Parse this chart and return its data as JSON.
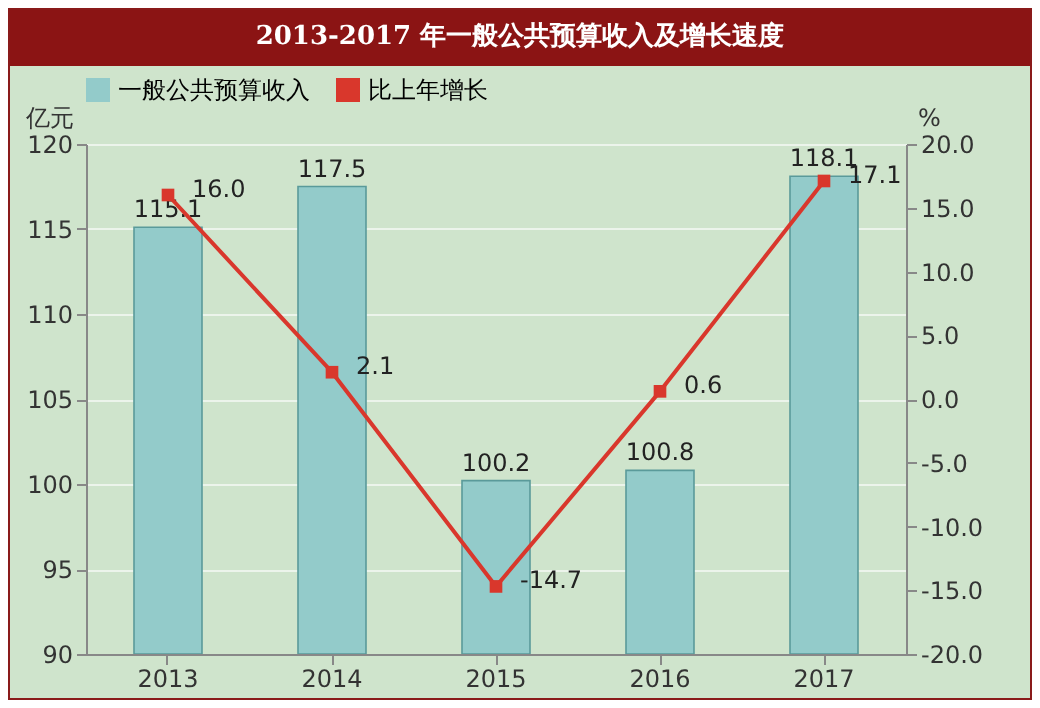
{
  "chart_data": {
    "type": "bar",
    "title": "2013-2017 年一般公共预算收入及增长速度",
    "ylabel": "亿元",
    "y2label": "%",
    "categories": [
      "2013",
      "2014",
      "2015",
      "2016",
      "2017"
    ],
    "series": [
      {
        "name": "一般公共预算收入",
        "color": "#93cbca",
        "values": [
          115.1,
          117.5,
          100.2,
          100.8,
          118.1
        ],
        "value_labels": [
          "115.1",
          "117.5",
          "100.2",
          "100.8",
          "118.1"
        ]
      },
      {
        "name": "比上年增长",
        "type": "line",
        "axis": "y2",
        "color": "#d9372c",
        "values": [
          16.0,
          2.1,
          -14.7,
          0.6,
          17.1
        ],
        "value_labels": [
          "16.0",
          "2.1",
          "-14.7",
          "0.6",
          "17.1"
        ]
      }
    ],
    "ylim": [
      90,
      120
    ],
    "yticks": [
      90,
      95,
      100,
      105,
      110,
      115,
      120
    ],
    "y2lim": [
      -20,
      20
    ],
    "y2ticks": [
      {
        "value": -20,
        "label": "-20.0"
      },
      {
        "value": -15,
        "label": "-15.0"
      },
      {
        "value": -10,
        "label": "-10.0"
      },
      {
        "value": -5,
        "label": "-5.0"
      },
      {
        "value": 0,
        "label": "0.0"
      },
      {
        "value": 5,
        "label": "5.0"
      },
      {
        "value": 10,
        "label": "10.0"
      },
      {
        "value": 15,
        "label": "15.0"
      },
      {
        "value": 20,
        "label": "20.0"
      }
    ],
    "grid": "y",
    "legend": "top",
    "marker": "square",
    "line_style": "solid"
  }
}
